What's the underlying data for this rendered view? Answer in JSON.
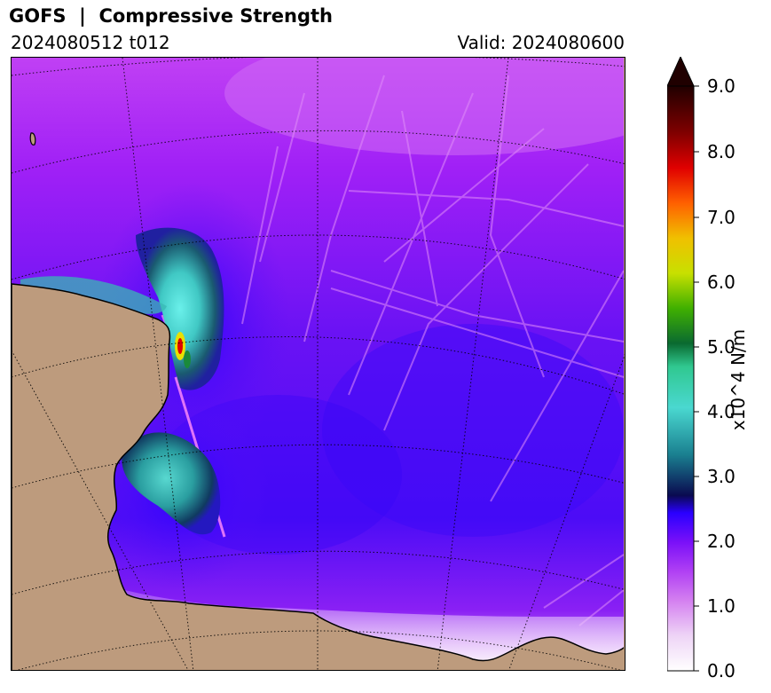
{
  "header": {
    "title": "GOFS  |  Compressive Strength",
    "run": "2024080512 t012",
    "valid": "Valid: 2024080600"
  },
  "colorbar": {
    "label": "x10^4 N/m",
    "ticks": [
      "0.0",
      "1.0",
      "2.0",
      "3.0",
      "4.0",
      "5.0",
      "6.0",
      "7.0",
      "8.0",
      "9.0"
    ],
    "min": 0,
    "max": 9,
    "extend": "max",
    "colors": [
      "#ffffff",
      "#e8c8f0",
      "#c030f0",
      "#9900ff",
      "#3300ff",
      "#0a0a60",
      "#2ec0b8",
      "#1a7a3a",
      "#70d000",
      "#f0e000",
      "#ff8000",
      "#e00000",
      "#800000",
      "#200000"
    ]
  },
  "map": {
    "land_color": "#bd9b7d",
    "coastline_color": "#000000",
    "gridline_style": "dotted"
  }
}
